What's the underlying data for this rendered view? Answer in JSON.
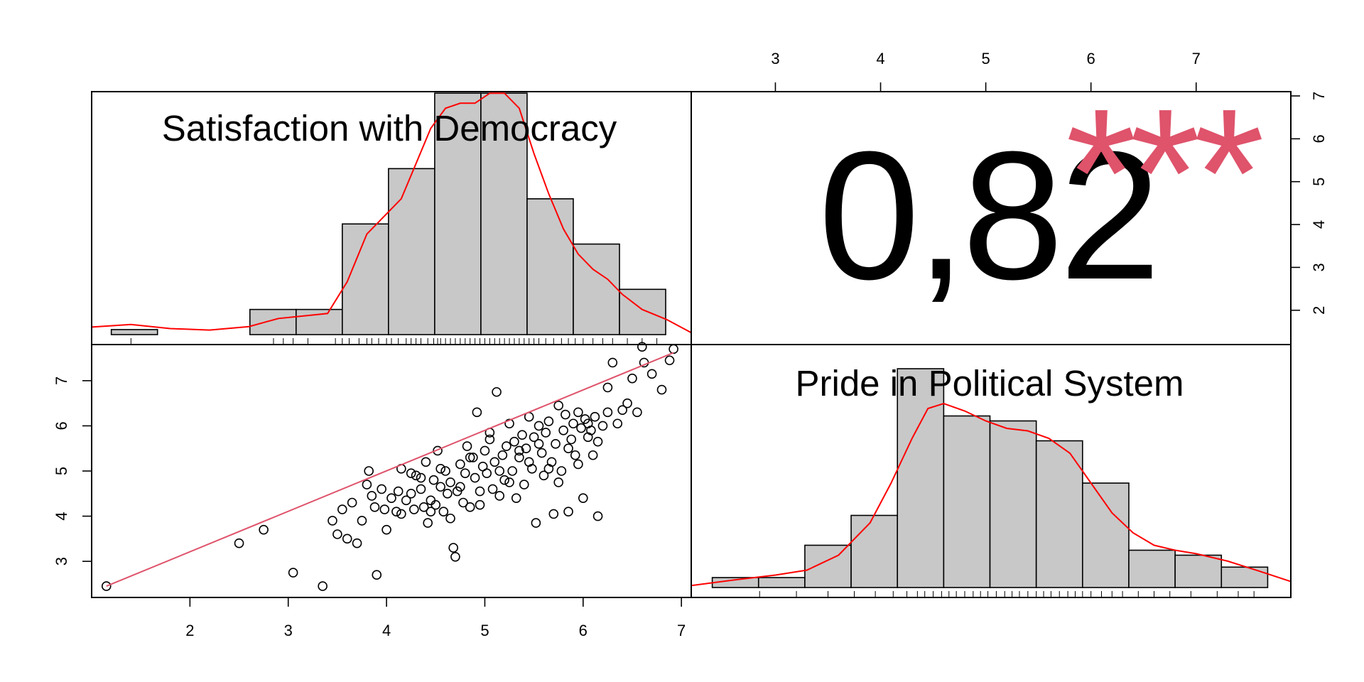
{
  "chart_data": [
    {
      "type": "histogram",
      "panel": "top-left",
      "title": "Satisfaction with Democracy",
      "x_range": [
        1.0,
        7.1
      ],
      "bins": [
        {
          "from": 1.2,
          "to": 1.67,
          "height": 1
        },
        {
          "from": 1.67,
          "to": 2.61,
          "height": 0
        },
        {
          "from": 2.61,
          "to": 3.08,
          "height": 5
        },
        {
          "from": 3.08,
          "to": 3.55,
          "height": 5
        },
        {
          "from": 3.55,
          "to": 4.02,
          "height": 22
        },
        {
          "from": 4.02,
          "to": 4.49,
          "height": 33
        },
        {
          "from": 4.49,
          "to": 4.96,
          "height": 48
        },
        {
          "from": 4.96,
          "to": 5.43,
          "height": 48
        },
        {
          "from": 5.43,
          "to": 5.9,
          "height": 27
        },
        {
          "from": 5.9,
          "to": 6.37,
          "height": 18
        },
        {
          "from": 6.37,
          "to": 6.84,
          "height": 9
        }
      ],
      "density": [
        [
          1.0,
          1.5
        ],
        [
          1.4,
          2.0
        ],
        [
          1.8,
          1.2
        ],
        [
          2.2,
          0.9
        ],
        [
          2.6,
          1.6
        ],
        [
          2.9,
          3.2
        ],
        [
          3.2,
          3.8
        ],
        [
          3.4,
          4.2
        ],
        [
          3.6,
          10.5
        ],
        [
          3.8,
          20
        ],
        [
          4.0,
          24
        ],
        [
          4.15,
          27
        ],
        [
          4.3,
          34
        ],
        [
          4.45,
          41
        ],
        [
          4.6,
          45
        ],
        [
          4.75,
          46
        ],
        [
          4.9,
          46
        ],
        [
          5.05,
          48
        ],
        [
          5.2,
          48
        ],
        [
          5.35,
          45
        ],
        [
          5.5,
          36
        ],
        [
          5.65,
          28
        ],
        [
          5.8,
          21
        ],
        [
          5.95,
          16
        ],
        [
          6.1,
          13
        ],
        [
          6.25,
          11
        ],
        [
          6.4,
          8
        ],
        [
          6.6,
          5
        ],
        [
          6.85,
          3
        ],
        [
          7.1,
          0.4
        ]
      ],
      "rug": [
        1.4,
        2.85,
        2.95,
        3.05,
        3.2,
        3.48,
        3.55,
        3.62,
        3.72,
        3.8,
        3.85,
        3.92,
        4.0,
        4.05,
        4.12,
        4.2,
        4.25,
        4.3,
        4.35,
        4.42,
        4.48,
        4.52,
        4.55,
        4.6,
        4.65,
        4.7,
        4.75,
        4.8,
        4.85,
        4.9,
        4.95,
        5.0,
        5.05,
        5.1,
        5.15,
        5.2,
        5.25,
        5.3,
        5.35,
        5.4,
        5.45,
        5.5,
        5.55,
        5.62,
        5.7,
        5.78,
        5.85,
        5.92,
        6.0,
        6.1,
        6.2,
        6.3,
        6.45,
        6.6,
        6.75
      ]
    },
    {
      "type": "text",
      "panel": "top-right",
      "correlation_label": "0,82",
      "significance_label": "***",
      "significance_color": "#DF536B",
      "x_ticks": [
        "3",
        "4",
        "5",
        "6",
        "7"
      ],
      "y_ticks": [
        "2",
        "3",
        "4",
        "5",
        "6",
        "7"
      ]
    },
    {
      "type": "scatter",
      "panel": "bottom-left",
      "x_range": [
        1.0,
        7.1
      ],
      "y_range": [
        2.2,
        7.8
      ],
      "x_ticks": [
        "2",
        "3",
        "4",
        "5",
        "6",
        "7"
      ],
      "y_ticks": [
        "3",
        "4",
        "5",
        "6",
        "7"
      ],
      "fit_line": {
        "x": [
          1.15,
          6.92
        ],
        "y": [
          2.45,
          7.62
        ],
        "color": "#DF536B"
      },
      "points": [
        [
          1.15,
          2.45
        ],
        [
          2.5,
          3.4
        ],
        [
          2.75,
          3.7
        ],
        [
          3.05,
          2.75
        ],
        [
          3.35,
          2.45
        ],
        [
          3.45,
          3.9
        ],
        [
          3.5,
          3.6
        ],
        [
          3.55,
          4.15
        ],
        [
          3.6,
          3.5
        ],
        [
          3.65,
          4.3
        ],
        [
          3.7,
          3.4
        ],
        [
          3.75,
          3.9
        ],
        [
          3.8,
          4.7
        ],
        [
          3.82,
          5.0
        ],
        [
          3.85,
          4.45
        ],
        [
          3.88,
          4.2
        ],
        [
          3.9,
          2.7
        ],
        [
          3.95,
          4.6
        ],
        [
          3.98,
          4.15
        ],
        [
          4.0,
          3.7
        ],
        [
          4.05,
          4.4
        ],
        [
          4.1,
          4.1
        ],
        [
          4.12,
          4.55
        ],
        [
          4.15,
          4.05
        ],
        [
          4.2,
          4.35
        ],
        [
          4.25,
          4.95
        ],
        [
          4.28,
          4.15
        ],
        [
          4.3,
          4.9
        ],
        [
          4.35,
          4.6
        ],
        [
          4.38,
          4.2
        ],
        [
          4.4,
          5.2
        ],
        [
          4.42,
          3.85
        ],
        [
          4.45,
          4.35
        ],
        [
          4.48,
          4.8
        ],
        [
          4.5,
          4.25
        ],
        [
          4.52,
          5.45
        ],
        [
          4.55,
          4.65
        ],
        [
          4.58,
          4.1
        ],
        [
          4.6,
          5.0
        ],
        [
          4.62,
          4.5
        ],
        [
          4.65,
          4.75
        ],
        [
          4.68,
          3.3
        ],
        [
          4.7,
          3.1
        ],
        [
          4.72,
          4.55
        ],
        [
          4.75,
          5.15
        ],
        [
          4.78,
          4.3
        ],
        [
          4.8,
          4.95
        ],
        [
          4.82,
          5.55
        ],
        [
          4.85,
          4.2
        ],
        [
          4.88,
          5.3
        ],
        [
          4.9,
          4.85
        ],
        [
          4.92,
          6.3
        ],
        [
          4.95,
          4.55
        ],
        [
          4.98,
          5.1
        ],
        [
          5.0,
          5.45
        ],
        [
          5.02,
          4.95
        ],
        [
          5.05,
          5.7
        ],
        [
          5.08,
          4.6
        ],
        [
          5.1,
          5.2
        ],
        [
          5.12,
          6.75
        ],
        [
          5.15,
          4.45
        ],
        [
          5.18,
          5.35
        ],
        [
          5.2,
          4.8
        ],
        [
          5.22,
          5.55
        ],
        [
          5.25,
          6.05
        ],
        [
          5.28,
          5.0
        ],
        [
          5.3,
          5.65
        ],
        [
          5.32,
          4.4
        ],
        [
          5.35,
          5.3
        ],
        [
          5.38,
          5.8
        ],
        [
          5.4,
          4.7
        ],
        [
          5.42,
          5.5
        ],
        [
          5.45,
          6.2
        ],
        [
          5.48,
          5.05
        ],
        [
          5.5,
          5.75
        ],
        [
          5.52,
          3.85
        ],
        [
          5.55,
          6.0
        ],
        [
          5.58,
          5.4
        ],
        [
          5.6,
          4.9
        ],
        [
          5.62,
          5.85
        ],
        [
          5.65,
          6.1
        ],
        [
          5.68,
          5.2
        ],
        [
          5.7,
          4.05
        ],
        [
          5.72,
          5.6
        ],
        [
          5.75,
          6.45
        ],
        [
          5.78,
          5.0
        ],
        [
          5.8,
          5.9
        ],
        [
          5.82,
          6.25
        ],
        [
          5.85,
          4.1
        ],
        [
          5.88,
          5.7
        ],
        [
          5.9,
          6.05
        ],
        [
          5.92,
          5.35
        ],
        [
          5.95,
          6.3
        ],
        [
          5.98,
          5.95
        ],
        [
          6.0,
          4.4
        ],
        [
          6.02,
          6.15
        ],
        [
          6.05,
          5.75
        ],
        [
          6.08,
          5.9
        ],
        [
          6.1,
          5.35
        ],
        [
          6.12,
          6.2
        ],
        [
          6.15,
          4.0
        ],
        [
          6.2,
          6.0
        ],
        [
          6.25,
          6.85
        ],
        [
          6.3,
          7.4
        ],
        [
          6.35,
          6.05
        ],
        [
          6.4,
          6.35
        ],
        [
          6.45,
          6.5
        ],
        [
          6.5,
          7.05
        ],
        [
          6.55,
          6.3
        ],
        [
          6.6,
          7.75
        ],
        [
          6.62,
          7.4
        ],
        [
          6.7,
          7.15
        ],
        [
          6.8,
          6.8
        ],
        [
          6.88,
          7.45
        ],
        [
          6.92,
          7.7
        ],
        [
          4.15,
          5.05
        ],
        [
          4.25,
          4.5
        ],
        [
          4.35,
          4.85
        ],
        [
          4.45,
          4.1
        ],
        [
          4.55,
          5.05
        ],
        [
          4.65,
          3.95
        ],
        [
          4.75,
          4.65
        ],
        [
          4.85,
          5.3
        ],
        [
          4.95,
          4.25
        ],
        [
          5.05,
          5.85
        ],
        [
          5.15,
          5.0
        ],
        [
          5.25,
          4.75
        ],
        [
          5.35,
          5.45
        ],
        [
          5.45,
          5.2
        ],
        [
          5.55,
          5.6
        ],
        [
          5.65,
          5.05
        ],
        [
          5.75,
          4.75
        ],
        [
          5.85,
          5.5
        ],
        [
          5.95,
          5.15
        ],
        [
          6.05,
          6.05
        ],
        [
          6.15,
          5.65
        ],
        [
          6.25,
          6.3
        ]
      ]
    },
    {
      "type": "histogram",
      "panel": "bottom-right",
      "title": "Pride in Political System",
      "x_range": [
        2.2,
        7.9
      ],
      "bins": [
        {
          "from": 2.4,
          "to": 2.84,
          "height": 2
        },
        {
          "from": 2.84,
          "to": 3.28,
          "height": 2
        },
        {
          "from": 3.28,
          "to": 3.72,
          "height": 8.5
        },
        {
          "from": 3.72,
          "to": 4.16,
          "height": 14.5
        },
        {
          "from": 4.16,
          "to": 4.6,
          "height": 44
        },
        {
          "from": 4.6,
          "to": 5.04,
          "height": 34.5
        },
        {
          "from": 5.04,
          "to": 5.48,
          "height": 33.5
        },
        {
          "from": 5.48,
          "to": 5.92,
          "height": 29.5
        },
        {
          "from": 5.92,
          "to": 6.36,
          "height": 21
        },
        {
          "from": 6.36,
          "to": 6.8,
          "height": 7.5
        },
        {
          "from": 6.8,
          "to": 7.24,
          "height": 6.5
        },
        {
          "from": 7.24,
          "to": 7.68,
          "height": 4.1
        }
      ],
      "density": [
        [
          2.2,
          0.4
        ],
        [
          2.6,
          1.5
        ],
        [
          3.0,
          2.5
        ],
        [
          3.3,
          3.5
        ],
        [
          3.6,
          6.5
        ],
        [
          3.9,
          13
        ],
        [
          4.1,
          21
        ],
        [
          4.3,
          30
        ],
        [
          4.45,
          36
        ],
        [
          4.6,
          37
        ],
        [
          4.8,
          35.5
        ],
        [
          5.0,
          33.5
        ],
        [
          5.2,
          32
        ],
        [
          5.4,
          31.5
        ],
        [
          5.6,
          30
        ],
        [
          5.8,
          27
        ],
        [
          6.0,
          21
        ],
        [
          6.2,
          15
        ],
        [
          6.4,
          11
        ],
        [
          6.6,
          8.5
        ],
        [
          6.8,
          7.5
        ],
        [
          7.0,
          6.8
        ],
        [
          7.3,
          5.3
        ],
        [
          7.6,
          3.3
        ],
        [
          7.9,
          1.2
        ]
      ],
      "rug": [
        2.85,
        3.2,
        3.5,
        3.75,
        3.95,
        4.12,
        4.25,
        4.35,
        4.42,
        4.5,
        4.58,
        4.65,
        4.72,
        4.8,
        4.88,
        4.95,
        5.02,
        5.1,
        5.18,
        5.25,
        5.32,
        5.4,
        5.48,
        5.55,
        5.62,
        5.7,
        5.78,
        5.85,
        5.92,
        6.0,
        6.1,
        6.2,
        6.3,
        6.45,
        6.6,
        6.75,
        6.95,
        7.2,
        7.4,
        7.55
      ]
    }
  ]
}
